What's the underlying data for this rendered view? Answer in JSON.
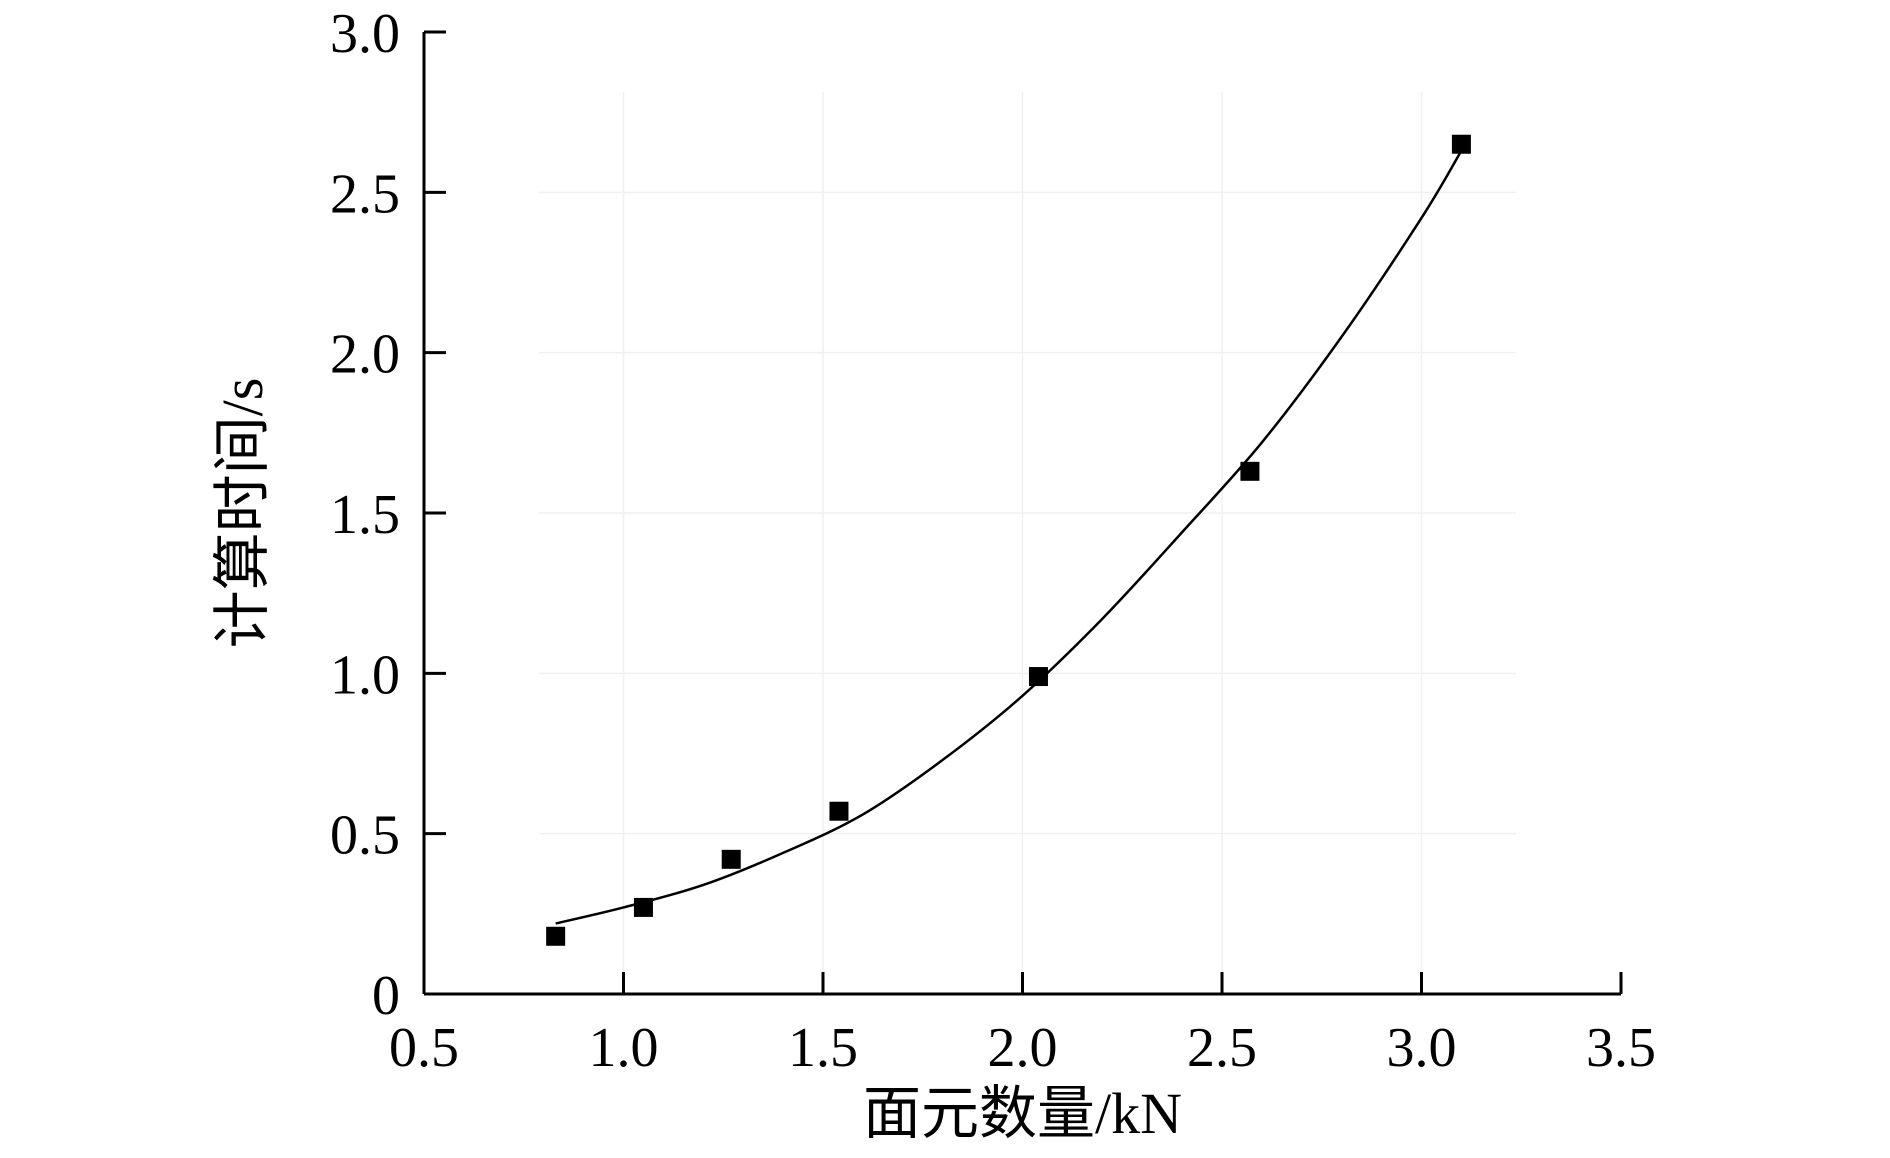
{
  "chart_data": {
    "type": "scatter",
    "title": "",
    "xlabel": "面元数量/kN",
    "ylabel": "计算时间/s",
    "xlim": [
      0.5,
      3.5
    ],
    "ylim": [
      0,
      3.0
    ],
    "x_ticks": [
      0.5,
      1.0,
      1.5,
      2.0,
      2.5,
      3.0,
      3.5
    ],
    "x_tick_labels": [
      "0.5",
      "1.0",
      "1.5",
      "2.0",
      "2.5",
      "3.0",
      "3.5"
    ],
    "y_ticks": [
      0,
      0.5,
      1.0,
      1.5,
      2.0,
      2.5,
      3.0
    ],
    "y_tick_labels": [
      "0",
      "0.5",
      "1.0",
      "1.5",
      "2.0",
      "2.5",
      "3.0"
    ],
    "grid": true,
    "legend": "none",
    "series": [
      {
        "kind": "points",
        "marker": "square",
        "color": "#000000",
        "x": [
          0.83,
          1.05,
          1.27,
          1.54,
          2.04,
          2.57,
          3.1
        ],
        "y": [
          0.18,
          0.27,
          0.42,
          0.57,
          0.99,
          1.63,
          2.65
        ]
      },
      {
        "kind": "fit-curve",
        "color": "#000000",
        "x": [
          0.83,
          1.0,
          1.2,
          1.4,
          1.6,
          1.8,
          2.0,
          2.2,
          2.4,
          2.6,
          2.8,
          3.0,
          3.1
        ],
        "y": [
          0.22,
          0.27,
          0.34,
          0.44,
          0.56,
          0.73,
          0.93,
          1.17,
          1.44,
          1.72,
          2.05,
          2.42,
          2.63
        ]
      }
    ]
  }
}
